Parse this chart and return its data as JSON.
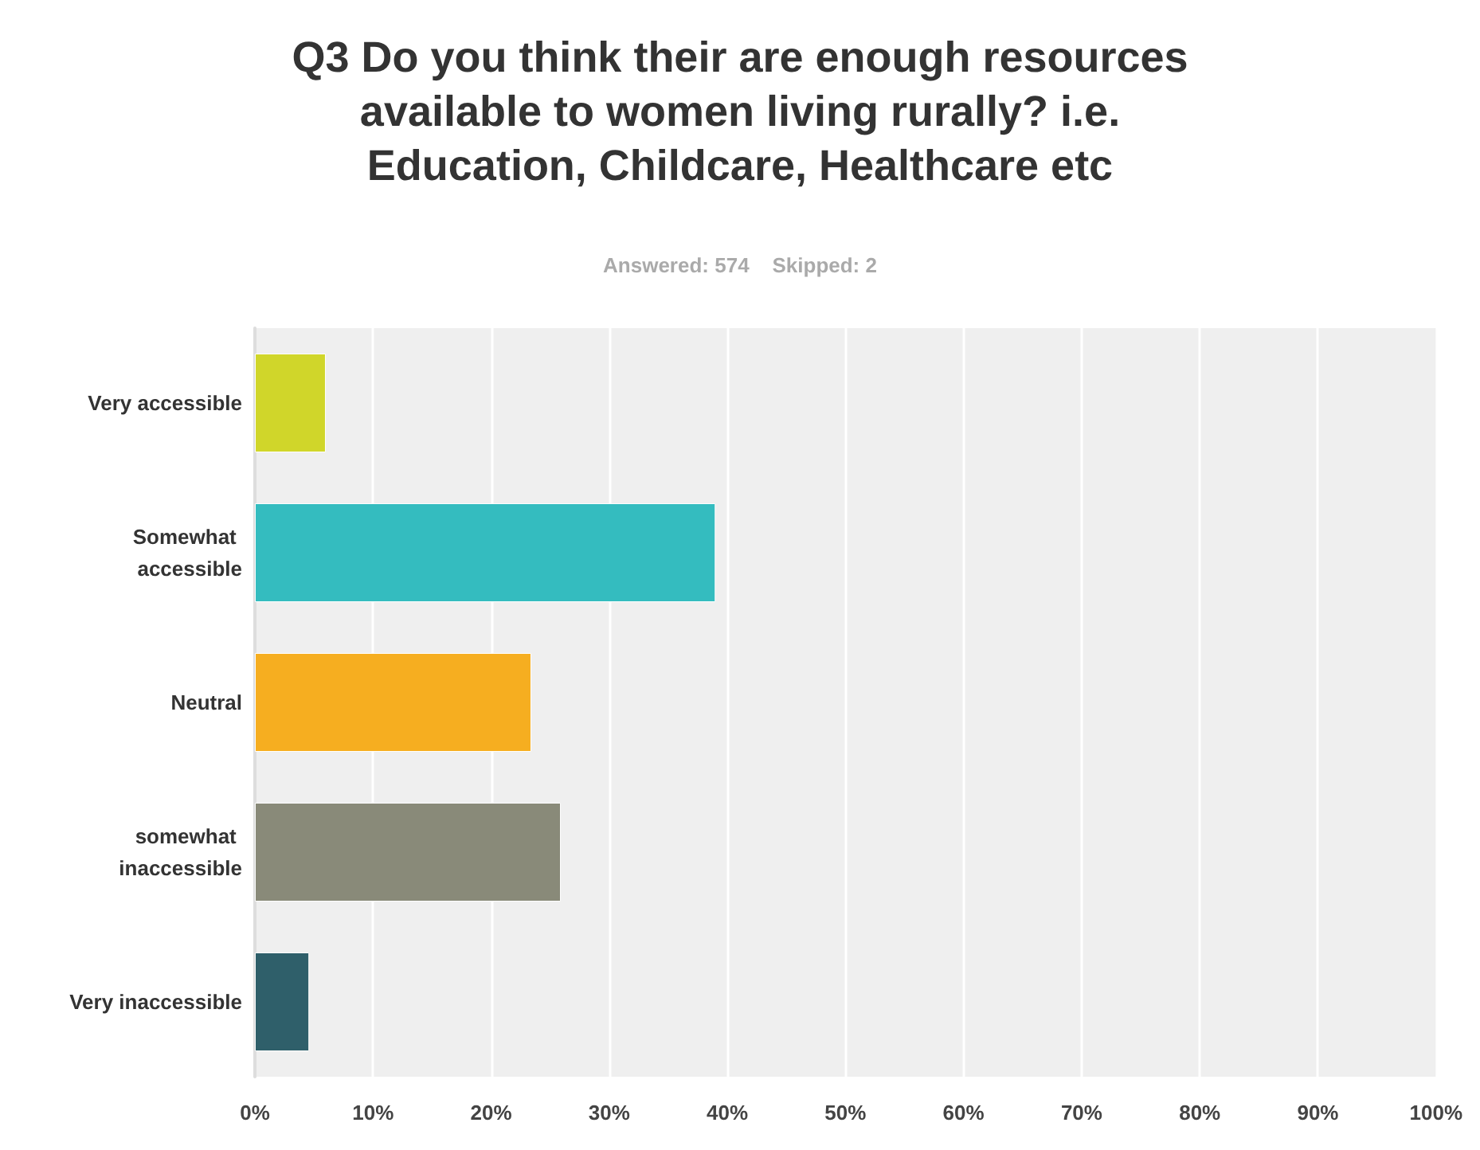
{
  "chart_data": {
    "type": "bar",
    "orientation": "horizontal",
    "title": "Q3 Do you think their are enough resources available to women living rurally? i.e. Education, Childcare, Healthcare etc",
    "subtitle": "Answered: 574    Skipped: 2",
    "categories": [
      "Very accessible",
      "Somewhat accessible",
      "Neutral",
      "somewhat inaccessible",
      "Very inaccessible"
    ],
    "values": [
      6.0,
      39.0,
      23.4,
      25.9,
      4.6
    ],
    "colors": [
      "#d0d62a",
      "#34bcbf",
      "#f6ae20",
      "#898a79",
      "#2f5f6a"
    ],
    "xlim": [
      0,
      100
    ],
    "xticks": [
      {
        "value": 0,
        "label": "0%"
      },
      {
        "value": 10,
        "label": "10%"
      },
      {
        "value": 20,
        "label": "20%"
      },
      {
        "value": 30,
        "label": "30%"
      },
      {
        "value": 40,
        "label": "40%"
      },
      {
        "value": 50,
        "label": "50%"
      },
      {
        "value": 60,
        "label": "60%"
      },
      {
        "value": 70,
        "label": "70%"
      },
      {
        "value": 80,
        "label": "80%"
      },
      {
        "value": 90,
        "label": "90%"
      },
      {
        "value": 100,
        "label": "100%"
      }
    ],
    "grid": "x"
  }
}
